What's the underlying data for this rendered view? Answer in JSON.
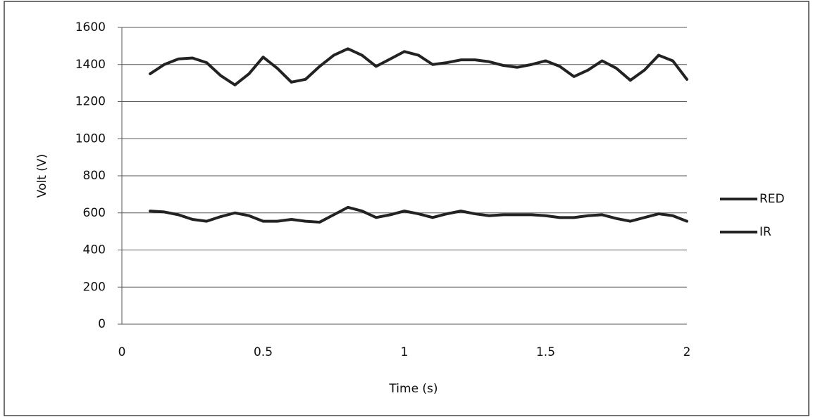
{
  "chart_data": {
    "type": "line",
    "x_label": "Time (s)",
    "y_label": "Volt (V)",
    "x": [
      0.1,
      0.15,
      0.2,
      0.25,
      0.3,
      0.35,
      0.4,
      0.45,
      0.5,
      0.55,
      0.6,
      0.65,
      0.7,
      0.75,
      0.8,
      0.85,
      0.9,
      0.95,
      1.0,
      1.05,
      1.1,
      1.15,
      1.2,
      1.25,
      1.3,
      1.35,
      1.4,
      1.45,
      1.5,
      1.55,
      1.6,
      1.65,
      1.7,
      1.75,
      1.8,
      1.85,
      1.9,
      1.95,
      2.0
    ],
    "series": [
      {
        "name": "RED",
        "color": "#222222",
        "values": [
          1350,
          1400,
          1430,
          1435,
          1410,
          1340,
          1290,
          1350,
          1440,
          1380,
          1305,
          1320,
          1390,
          1450,
          1485,
          1450,
          1390,
          1430,
          1470,
          1450,
          1400,
          1410,
          1425,
          1425,
          1415,
          1395,
          1385,
          1400,
          1420,
          1390,
          1335,
          1370,
          1420,
          1380,
          1315,
          1370,
          1450,
          1420,
          1320
        ]
      },
      {
        "name": "IR",
        "color": "#222222",
        "values": [
          610,
          605,
          590,
          565,
          555,
          580,
          600,
          585,
          555,
          555,
          565,
          555,
          550,
          590,
          630,
          610,
          575,
          590,
          610,
          595,
          575,
          595,
          610,
          595,
          585,
          590,
          590,
          590,
          585,
          575,
          575,
          585,
          590,
          570,
          555,
          575,
          595,
          585,
          555
        ]
      }
    ],
    "xlim": [
      0,
      2
    ],
    "xticks": [
      0,
      0.5,
      1,
      1.5,
      2
    ],
    "ylim": [
      0,
      1600
    ],
    "yticks": [
      0,
      200,
      400,
      600,
      800,
      1000,
      1200,
      1400,
      1600
    ],
    "grid": true,
    "legend": "right"
  }
}
